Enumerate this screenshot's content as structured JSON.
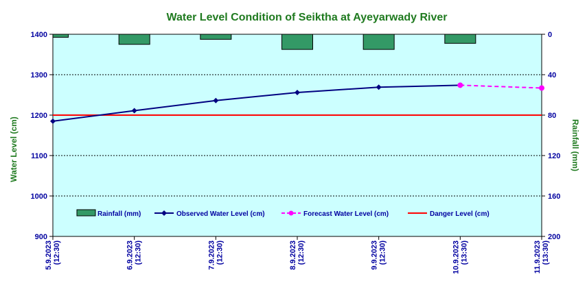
{
  "chart_data": {
    "type": "bar",
    "title": "Water Level Condition  of Seiktha  at Ayeyarwady  River",
    "ylabel": "Water Level (cm)",
    "y2label": "Rainfall (mm)",
    "ylim": [
      900,
      1400
    ],
    "yticks": [
      900,
      1000,
      1100,
      1200,
      1300,
      1400
    ],
    "y2lim": [
      0,
      200
    ],
    "y2_reversed": true,
    "y2ticks": [
      0,
      40,
      80,
      120,
      160,
      200
    ],
    "categories": [
      {
        "date": "5.9.2023",
        "time": "(12:30)"
      },
      {
        "date": "6.9.2023",
        "time": "(12:30)"
      },
      {
        "date": "7.9.2023",
        "time": "(12:30)"
      },
      {
        "date": "8.9.2023",
        "time": "(12:30)"
      },
      {
        "date": "9.9.2023",
        "time": "(12:30)"
      },
      {
        "date": "10.9.2023",
        "time": "(13:30)"
      },
      {
        "date": "11.9.2023",
        "time": "(13:30)"
      }
    ],
    "grid": true,
    "legend_position": "bottom",
    "series": [
      {
        "name": "Rainfall (mm)",
        "kind": "bar",
        "axis": "right",
        "color": "#339966",
        "values": [
          3,
          10,
          5,
          15,
          15,
          9,
          null
        ]
      },
      {
        "name": "Observed Water Level (cm)",
        "kind": "line",
        "axis": "left",
        "color": "#000080",
        "values": [
          1185,
          1211,
          1236,
          1256,
          1269,
          1274,
          null
        ]
      },
      {
        "name": "Forecast Water Level (cm)",
        "kind": "dashed-line",
        "axis": "left",
        "color": "#ff00ff",
        "values": [
          null,
          null,
          null,
          null,
          null,
          1274,
          1267
        ]
      },
      {
        "name": "Danger Level (cm)",
        "kind": "hline",
        "axis": "left",
        "color": "#ff0000",
        "value": 1200
      }
    ],
    "colors": {
      "plot_background": "#ccffff",
      "title": "#1f7a1f",
      "axis_text": "#0000a0",
      "bar_stroke": "#000000"
    }
  }
}
